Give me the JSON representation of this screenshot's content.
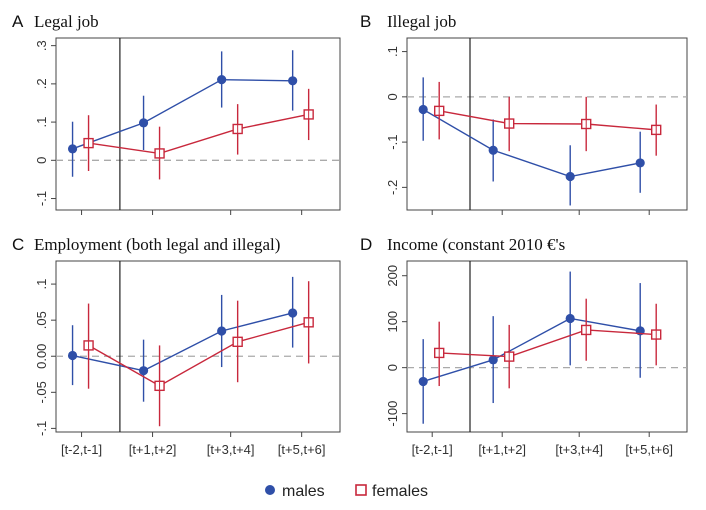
{
  "chart_data": [
    {
      "type": "line",
      "panel": "A",
      "title": "Legal job",
      "categories": [
        "[t-2,t-1]",
        "[t+1,t+2]",
        "[t+3,t+4]",
        "[t+5,t+6]"
      ],
      "ylim": [
        -0.13,
        0.32
      ],
      "yticks": [
        -0.1,
        0,
        0.1,
        0.2,
        0.3
      ],
      "ytick_labels": [
        "-.1",
        "0",
        ".1",
        ".2",
        ".3"
      ],
      "show_xticks": false,
      "series": [
        {
          "name": "males",
          "values": [
            0.03,
            0.098,
            0.211,
            0.208
          ],
          "ci_low": [
            -0.043,
            0.027,
            0.138,
            0.13
          ],
          "ci_high": [
            0.101,
            0.169,
            0.285,
            0.288
          ]
        },
        {
          "name": "females",
          "values": [
            0.045,
            0.018,
            0.082,
            0.12
          ],
          "ci_low": [
            -0.028,
            -0.05,
            0.015,
            0.053
          ],
          "ci_high": [
            0.118,
            0.088,
            0.147,
            0.187
          ]
        }
      ]
    },
    {
      "type": "line",
      "panel": "B",
      "title": "Illegal job",
      "categories": [
        "[t-2,t-1]",
        "[t+1,t+2]",
        "[t+3,t+4]",
        "[t+5,t+6]"
      ],
      "ylim": [
        -0.25,
        0.13
      ],
      "yticks": [
        -0.2,
        -0.1,
        0,
        0.1
      ],
      "ytick_labels": [
        "-.2",
        "-.1",
        "0",
        ".1"
      ],
      "show_xticks": false,
      "series": [
        {
          "name": "males",
          "values": [
            -0.028,
            -0.118,
            -0.176,
            -0.146
          ],
          "ci_low": [
            -0.097,
            -0.187,
            -0.24,
            -0.212
          ],
          "ci_high": [
            0.043,
            -0.05,
            -0.107,
            -0.077
          ]
        },
        {
          "name": "females",
          "values": [
            -0.031,
            -0.059,
            -0.06,
            -0.073
          ],
          "ci_low": [
            -0.094,
            -0.12,
            -0.12,
            -0.13
          ],
          "ci_high": [
            0.033,
            0.0,
            0.0,
            -0.017
          ]
        }
      ]
    },
    {
      "type": "line",
      "panel": "C",
      "title": "Employment (both legal and illegal)",
      "categories": [
        "[t-2,t-1]",
        "[t+1,t+2]",
        "[t+3,t+4]",
        "[t+5,t+6]"
      ],
      "ylim": [
        -0.105,
        0.132
      ],
      "yticks": [
        -0.1,
        -0.05,
        0,
        0.05,
        0.1
      ],
      "ytick_labels": [
        "-.1",
        "-.05",
        "0.00",
        ".05",
        ".1"
      ],
      "show_xticks": true,
      "series": [
        {
          "name": "males",
          "values": [
            0.001,
            -0.02,
            0.035,
            0.06
          ],
          "ci_low": [
            -0.04,
            -0.063,
            -0.015,
            0.012
          ],
          "ci_high": [
            0.043,
            0.023,
            0.085,
            0.11
          ]
        },
        {
          "name": "females",
          "values": [
            0.015,
            -0.041,
            0.02,
            0.047
          ],
          "ci_low": [
            -0.045,
            -0.097,
            -0.036,
            -0.01
          ],
          "ci_high": [
            0.073,
            0.015,
            0.077,
            0.104
          ]
        }
      ]
    },
    {
      "type": "line",
      "panel": "D",
      "title": "Income (constant 2010 €'s",
      "categories": [
        "[t-2,t-1]",
        "[t+1,t+2]",
        "[t+3,t+4]",
        "[t+5,t+6]"
      ],
      "ylim": [
        -140,
        232
      ],
      "yticks": [
        -100,
        0,
        100,
        200
      ],
      "ytick_labels": [
        "-100",
        "0",
        "100",
        "200"
      ],
      "show_xticks": true,
      "series": [
        {
          "name": "males",
          "values": [
            -30,
            17,
            107,
            80
          ],
          "ci_low": [
            -122,
            -77,
            5,
            -22
          ],
          "ci_high": [
            62,
            112,
            209,
            184
          ]
        },
        {
          "name": "females",
          "values": [
            32,
            24,
            82,
            72
          ],
          "ci_low": [
            -40,
            -45,
            15,
            5
          ],
          "ci_high": [
            100,
            93,
            150,
            139
          ]
        }
      ]
    }
  ],
  "legend": {
    "males_label": "males",
    "females_label": "females",
    "males_color": "#2f4fa8",
    "females_color": "#c8283c"
  }
}
